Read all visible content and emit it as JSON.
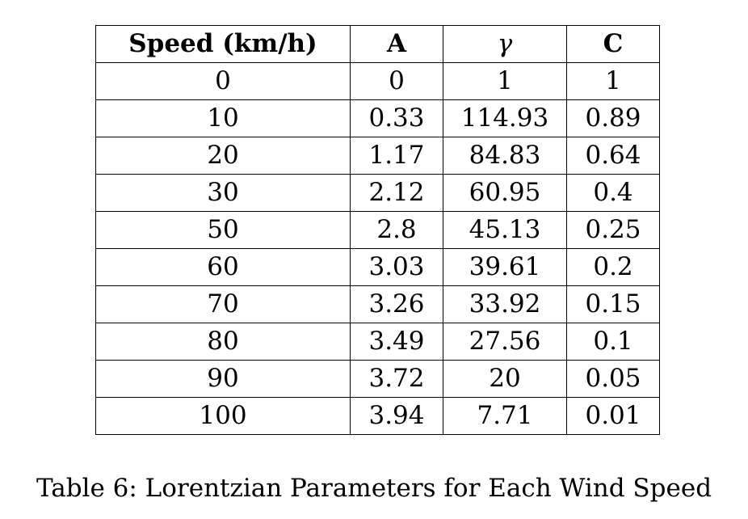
{
  "table": {
    "headers": [
      "Speed (km/h)",
      "A",
      "γ",
      "C"
    ],
    "rows": [
      [
        "0",
        "0",
        "1",
        "1"
      ],
      [
        "10",
        "0.33",
        "114.93",
        "0.89"
      ],
      [
        "20",
        "1.17",
        "84.83",
        "0.64"
      ],
      [
        "30",
        "2.12",
        "60.95",
        "0.4"
      ],
      [
        "50",
        "2.8",
        "45.13",
        "0.25"
      ],
      [
        "60",
        "3.03",
        "39.61",
        "0.2"
      ],
      [
        "70",
        "3.26",
        "33.92",
        "0.15"
      ],
      [
        "80",
        "3.49",
        "27.56",
        "0.1"
      ],
      [
        "90",
        "3.72",
        "20",
        "0.05"
      ],
      [
        "100",
        "3.94",
        "7.71",
        "0.01"
      ]
    ]
  },
  "caption": "Table 6: Lorentzian Parameters for Each Wind Speed"
}
